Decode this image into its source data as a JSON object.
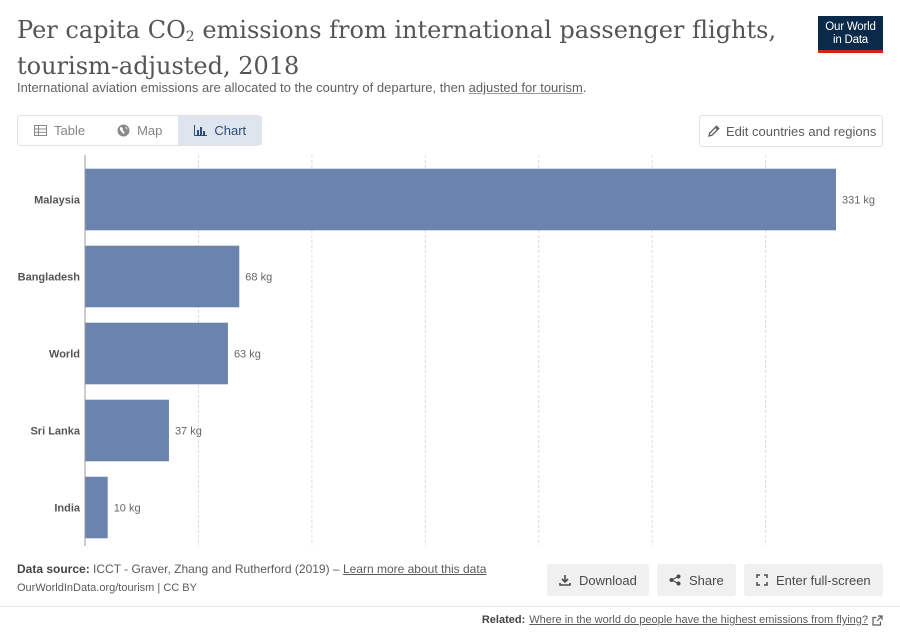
{
  "header": {
    "title_main": "Per capita CO",
    "title_sub": "2",
    "title_rest": " emissions from international passenger flights, tourism-adjusted, 2018",
    "subtitle_before": "International aviation emissions are allocated to the country of departure, then ",
    "subtitle_link": "adjusted for tourism",
    "subtitle_after": ".",
    "logo_line1": "Our World",
    "logo_line2": "in Data"
  },
  "tabs": [
    {
      "label": "Table",
      "icon": "table-icon"
    },
    {
      "label": "Map",
      "icon": "globe-icon"
    },
    {
      "label": "Chart",
      "icon": "bar-chart-icon",
      "active": true
    }
  ],
  "edit_button": {
    "label": "Edit countries and regions",
    "icon": "pencil-icon"
  },
  "chart_data": {
    "type": "bar",
    "orientation": "horizontal",
    "categories": [
      "Malaysia",
      "Bangladesh",
      "World",
      "Sri Lanka",
      "India"
    ],
    "values": [
      331,
      68,
      63,
      37,
      10
    ],
    "value_labels": [
      "331 kg",
      "68 kg",
      "63 kg",
      "37 kg",
      "10 kg"
    ],
    "unit": "kg",
    "xlim": [
      0,
      331
    ],
    "grid": true,
    "bar_color": "#6a84ae"
  },
  "footer": {
    "source_label": "Data source:",
    "source_text": " ICCT - Graver, Zhang and Rutherford (2019) – ",
    "learn_more": "Learn more about this data",
    "url_line": "OurWorldInData.org/tourism | CC BY",
    "download": "Download",
    "share": "Share",
    "fullscreen": "Enter full-screen",
    "related_label": "Related:",
    "related_link": "Where in the world do people have the highest emissions from flying?"
  },
  "colors": {
    "accent": "#2b4d74",
    "logo_bg": "#0b2a4a",
    "logo_underline": "#ce261e"
  }
}
